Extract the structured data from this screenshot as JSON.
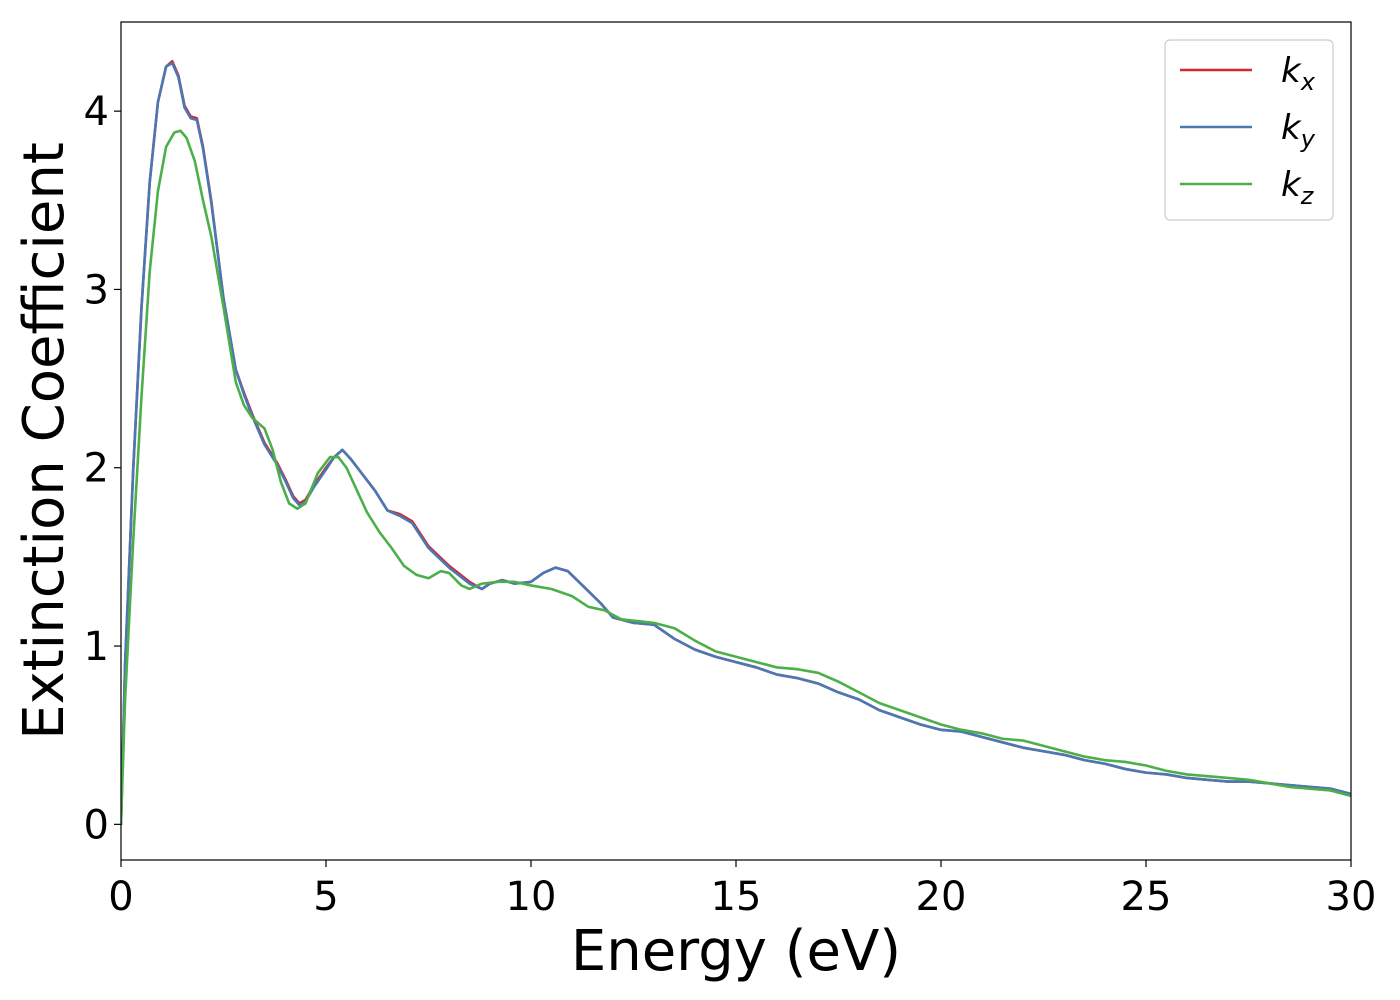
{
  "chart_data": {
    "type": "line",
    "title": "",
    "xlabel": "Energy (eV)",
    "ylabel": "Extinction Coefficient",
    "xlim": [
      0,
      30
    ],
    "ylim": [
      -0.2,
      4.5
    ],
    "xticks": [
      "0",
      "5",
      "10",
      "15",
      "20",
      "25",
      "30"
    ],
    "yticks": [
      "0",
      "1",
      "2",
      "3",
      "4"
    ],
    "grid": false,
    "legend_position": "top-right",
    "series": [
      {
        "name": "k_x",
        "label_main": "k",
        "label_sub": "x",
        "color": "#d62728",
        "points": [
          [
            0,
            0
          ],
          [
            0.1,
            0.9
          ],
          [
            0.3,
            2.0
          ],
          [
            0.5,
            2.9
          ],
          [
            0.7,
            3.6
          ],
          [
            0.9,
            4.05
          ],
          [
            1.1,
            4.25
          ],
          [
            1.25,
            4.28
          ],
          [
            1.4,
            4.2
          ],
          [
            1.55,
            4.03
          ],
          [
            1.7,
            3.97
          ],
          [
            1.85,
            3.96
          ],
          [
            2.0,
            3.8
          ],
          [
            2.2,
            3.5
          ],
          [
            2.5,
            2.95
          ],
          [
            2.8,
            2.55
          ],
          [
            3.0,
            2.42
          ],
          [
            3.2,
            2.3
          ],
          [
            3.5,
            2.14
          ],
          [
            3.8,
            2.03
          ],
          [
            4.0,
            1.94
          ],
          [
            4.2,
            1.84
          ],
          [
            4.35,
            1.8
          ],
          [
            4.5,
            1.82
          ],
          [
            4.7,
            1.9
          ],
          [
            5.0,
            2.0
          ],
          [
            5.2,
            2.06
          ],
          [
            5.4,
            2.1
          ],
          [
            5.6,
            2.05
          ],
          [
            5.9,
            1.96
          ],
          [
            6.2,
            1.87
          ],
          [
            6.5,
            1.76
          ],
          [
            6.8,
            1.74
          ],
          [
            7.1,
            1.7
          ],
          [
            7.5,
            1.56
          ],
          [
            8.0,
            1.45
          ],
          [
            8.5,
            1.36
          ],
          [
            8.8,
            1.32
          ],
          [
            9.0,
            1.35
          ],
          [
            9.3,
            1.37
          ],
          [
            9.6,
            1.35
          ],
          [
            10.0,
            1.36
          ],
          [
            10.3,
            1.41
          ],
          [
            10.6,
            1.44
          ],
          [
            10.9,
            1.42
          ],
          [
            11.3,
            1.33
          ],
          [
            11.7,
            1.24
          ],
          [
            12.0,
            1.16
          ],
          [
            12.5,
            1.13
          ],
          [
            13.0,
            1.12
          ],
          [
            13.5,
            1.04
          ],
          [
            14.0,
            0.98
          ],
          [
            14.5,
            0.94
          ],
          [
            15.0,
            0.91
          ],
          [
            15.5,
            0.88
          ],
          [
            16.0,
            0.84
          ],
          [
            16.5,
            0.82
          ],
          [
            17.0,
            0.79
          ],
          [
            17.5,
            0.74
          ],
          [
            18.0,
            0.7
          ],
          [
            18.5,
            0.64
          ],
          [
            19.0,
            0.6
          ],
          [
            19.5,
            0.56
          ],
          [
            20.0,
            0.53
          ],
          [
            20.5,
            0.52
          ],
          [
            21.0,
            0.49
          ],
          [
            21.5,
            0.46
          ],
          [
            22.0,
            0.43
          ],
          [
            22.5,
            0.41
          ],
          [
            23.0,
            0.39
          ],
          [
            23.5,
            0.36
          ],
          [
            24.0,
            0.34
          ],
          [
            24.5,
            0.31
          ],
          [
            25.0,
            0.29
          ],
          [
            25.5,
            0.28
          ],
          [
            26.0,
            0.26
          ],
          [
            26.5,
            0.25
          ],
          [
            27.0,
            0.24
          ],
          [
            27.5,
            0.24
          ],
          [
            28.0,
            0.23
          ],
          [
            28.5,
            0.22
          ],
          [
            29.0,
            0.21
          ],
          [
            29.5,
            0.2
          ],
          [
            30.0,
            0.17
          ]
        ]
      },
      {
        "name": "k_y",
        "label_main": "k",
        "label_sub": "y",
        "color": "#4a78b5",
        "points": [
          [
            0,
            0
          ],
          [
            0.1,
            0.9
          ],
          [
            0.3,
            2.0
          ],
          [
            0.5,
            2.9
          ],
          [
            0.7,
            3.6
          ],
          [
            0.9,
            4.05
          ],
          [
            1.1,
            4.25
          ],
          [
            1.25,
            4.27
          ],
          [
            1.4,
            4.19
          ],
          [
            1.55,
            4.02
          ],
          [
            1.7,
            3.96
          ],
          [
            1.85,
            3.95
          ],
          [
            2.0,
            3.79
          ],
          [
            2.2,
            3.49
          ],
          [
            2.5,
            2.95
          ],
          [
            2.8,
            2.55
          ],
          [
            3.0,
            2.41
          ],
          [
            3.2,
            2.29
          ],
          [
            3.5,
            2.13
          ],
          [
            3.8,
            2.02
          ],
          [
            4.0,
            1.93
          ],
          [
            4.2,
            1.83
          ],
          [
            4.35,
            1.79
          ],
          [
            4.5,
            1.81
          ],
          [
            4.7,
            1.89
          ],
          [
            5.0,
            1.99
          ],
          [
            5.2,
            2.06
          ],
          [
            5.4,
            2.1
          ],
          [
            5.6,
            2.05
          ],
          [
            5.9,
            1.96
          ],
          [
            6.2,
            1.87
          ],
          [
            6.5,
            1.76
          ],
          [
            6.8,
            1.73
          ],
          [
            7.1,
            1.69
          ],
          [
            7.5,
            1.55
          ],
          [
            8.0,
            1.44
          ],
          [
            8.5,
            1.35
          ],
          [
            8.8,
            1.32
          ],
          [
            9.0,
            1.35
          ],
          [
            9.3,
            1.37
          ],
          [
            9.6,
            1.35
          ],
          [
            10.0,
            1.36
          ],
          [
            10.3,
            1.41
          ],
          [
            10.6,
            1.44
          ],
          [
            10.9,
            1.42
          ],
          [
            11.3,
            1.33
          ],
          [
            11.7,
            1.24
          ],
          [
            12.0,
            1.16
          ],
          [
            12.5,
            1.13
          ],
          [
            13.0,
            1.12
          ],
          [
            13.5,
            1.04
          ],
          [
            14.0,
            0.98
          ],
          [
            14.5,
            0.94
          ],
          [
            15.0,
            0.91
          ],
          [
            15.5,
            0.88
          ],
          [
            16.0,
            0.84
          ],
          [
            16.5,
            0.82
          ],
          [
            17.0,
            0.79
          ],
          [
            17.5,
            0.74
          ],
          [
            18.0,
            0.7
          ],
          [
            18.5,
            0.64
          ],
          [
            19.0,
            0.6
          ],
          [
            19.5,
            0.56
          ],
          [
            20.0,
            0.53
          ],
          [
            20.5,
            0.52
          ],
          [
            21.0,
            0.49
          ],
          [
            21.5,
            0.46
          ],
          [
            22.0,
            0.43
          ],
          [
            22.5,
            0.41
          ],
          [
            23.0,
            0.39
          ],
          [
            23.5,
            0.36
          ],
          [
            24.0,
            0.34
          ],
          [
            24.5,
            0.31
          ],
          [
            25.0,
            0.29
          ],
          [
            25.5,
            0.28
          ],
          [
            26.0,
            0.26
          ],
          [
            26.5,
            0.25
          ],
          [
            27.0,
            0.24
          ],
          [
            27.5,
            0.24
          ],
          [
            28.0,
            0.23
          ],
          [
            28.5,
            0.22
          ],
          [
            29.0,
            0.21
          ],
          [
            29.5,
            0.2
          ],
          [
            30.0,
            0.17
          ]
        ]
      },
      {
        "name": "k_z",
        "label_main": "k",
        "label_sub": "z",
        "color": "#4daf4a",
        "points": [
          [
            0,
            0
          ],
          [
            0.1,
            0.7
          ],
          [
            0.3,
            1.6
          ],
          [
            0.5,
            2.4
          ],
          [
            0.7,
            3.1
          ],
          [
            0.9,
            3.55
          ],
          [
            1.1,
            3.8
          ],
          [
            1.3,
            3.88
          ],
          [
            1.45,
            3.89
          ],
          [
            1.6,
            3.85
          ],
          [
            1.8,
            3.72
          ],
          [
            2.0,
            3.5
          ],
          [
            2.2,
            3.3
          ],
          [
            2.5,
            2.9
          ],
          [
            2.8,
            2.48
          ],
          [
            3.0,
            2.35
          ],
          [
            3.2,
            2.28
          ],
          [
            3.5,
            2.22
          ],
          [
            3.7,
            2.1
          ],
          [
            3.9,
            1.92
          ],
          [
            4.1,
            1.8
          ],
          [
            4.3,
            1.77
          ],
          [
            4.5,
            1.8
          ],
          [
            4.8,
            1.97
          ],
          [
            5.1,
            2.06
          ],
          [
            5.3,
            2.06
          ],
          [
            5.5,
            2.0
          ],
          [
            5.7,
            1.9
          ],
          [
            6.0,
            1.75
          ],
          [
            6.3,
            1.64
          ],
          [
            6.6,
            1.55
          ],
          [
            6.9,
            1.45
          ],
          [
            7.2,
            1.4
          ],
          [
            7.5,
            1.38
          ],
          [
            7.8,
            1.42
          ],
          [
            8.0,
            1.41
          ],
          [
            8.3,
            1.34
          ],
          [
            8.5,
            1.32
          ],
          [
            8.8,
            1.35
          ],
          [
            9.2,
            1.36
          ],
          [
            9.6,
            1.36
          ],
          [
            10.0,
            1.34
          ],
          [
            10.5,
            1.32
          ],
          [
            11.0,
            1.28
          ],
          [
            11.4,
            1.22
          ],
          [
            11.8,
            1.2
          ],
          [
            12.2,
            1.15
          ],
          [
            12.6,
            1.14
          ],
          [
            13.0,
            1.13
          ],
          [
            13.5,
            1.1
          ],
          [
            14.0,
            1.03
          ],
          [
            14.5,
            0.97
          ],
          [
            15.0,
            0.94
          ],
          [
            15.5,
            0.91
          ],
          [
            16.0,
            0.88
          ],
          [
            16.5,
            0.87
          ],
          [
            17.0,
            0.85
          ],
          [
            17.5,
            0.8
          ],
          [
            18.0,
            0.74
          ],
          [
            18.5,
            0.68
          ],
          [
            19.0,
            0.64
          ],
          [
            19.5,
            0.6
          ],
          [
            20.0,
            0.56
          ],
          [
            20.5,
            0.53
          ],
          [
            21.0,
            0.51
          ],
          [
            21.5,
            0.48
          ],
          [
            22.0,
            0.47
          ],
          [
            22.5,
            0.44
          ],
          [
            23.0,
            0.41
          ],
          [
            23.5,
            0.38
          ],
          [
            24.0,
            0.36
          ],
          [
            24.5,
            0.35
          ],
          [
            25.0,
            0.33
          ],
          [
            25.5,
            0.3
          ],
          [
            26.0,
            0.28
          ],
          [
            26.5,
            0.27
          ],
          [
            27.0,
            0.26
          ],
          [
            27.5,
            0.25
          ],
          [
            28.0,
            0.23
          ],
          [
            28.5,
            0.21
          ],
          [
            29.0,
            0.2
          ],
          [
            29.5,
            0.19
          ],
          [
            30.0,
            0.16
          ]
        ]
      }
    ]
  }
}
